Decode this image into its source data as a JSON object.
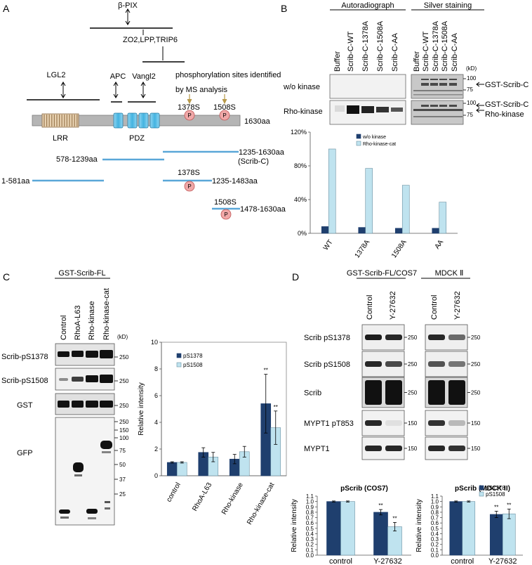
{
  "panel_labels": [
    "A",
    "B",
    "C",
    "D"
  ],
  "panel_a": {
    "top_partner": "β-PIX",
    "middle_partners": "ZO2,LPP,TRIP6",
    "lgl2": "LGL2",
    "apc": "APC",
    "vangl2": "Vangl2",
    "phospho_note_1": "phosphorylation sites identified",
    "phospho_note_2": "by MS analysis",
    "site_1": "1378S",
    "site_2": "1508S",
    "p_label": "P",
    "length": "1630aa",
    "domain_lrr": "LRR",
    "domain_pdz": "PDZ",
    "fragments": [
      {
        "label": "1235-1630aa",
        "sub": "(Scrib-C)"
      },
      {
        "label": "578-1239aa"
      },
      {
        "label": "1-581aa"
      },
      {
        "label": "1235-1483aa",
        "site": "1378S"
      },
      {
        "label": "1478-1630aa",
        "site": "1508S"
      }
    ]
  },
  "panel_b": {
    "header_left": "Autoradiograph",
    "header_right": "Silver staining",
    "lanes": [
      "Buffer",
      "Scrib-C-WT",
      "Scrib-C-1378A",
      "Scrib-C-1508A",
      "Scrib-C-AA"
    ],
    "kd": "(kD)",
    "rows": [
      {
        "label": "w/o kinase",
        "markers": [
          "100",
          "75"
        ],
        "bands": [
          "GST-Scrib-C"
        ]
      },
      {
        "label": "Rho-kinase",
        "markers": [
          "100",
          "75"
        ],
        "bands": [
          "GST-Scrib-C",
          "Rho-kinase"
        ]
      }
    ]
  },
  "panel_c": {
    "construct": "GST-Scrib-FL",
    "lanes": [
      "Control",
      "RhoA-L63",
      "Rho-kinase",
      "Rho-kinase-cat"
    ],
    "kd": "(kD)",
    "blots": [
      {
        "label": "Scrib-pS1378",
        "marker": "250"
      },
      {
        "label": "Scrib-pS1508",
        "marker": "250"
      },
      {
        "label": "GST",
        "marker": "250"
      },
      {
        "label": "GFP",
        "markers": [
          "250",
          "150",
          "100",
          "75",
          "50",
          "37",
          "25"
        ]
      }
    ],
    "sig_mark": "**"
  },
  "panel_d": {
    "group_left": "GST-Scrib-FL/COS7",
    "group_right": "MDCK Ⅱ",
    "lanes": [
      "Control",
      "Y-27632"
    ],
    "blots": [
      {
        "label": "Scrib pS1378",
        "marker": "250"
      },
      {
        "label": "Scrib pS1508",
        "marker": "250"
      },
      {
        "label": "Scrib",
        "marker": "250"
      },
      {
        "label": "MYPT1 pT853",
        "marker": "150"
      },
      {
        "label": "MYPT1",
        "marker": "150"
      }
    ],
    "sig_mark": "**"
  },
  "colors": {
    "dark_series": "#1f3f6e",
    "light_series": "#bfe3ef",
    "domain_blue": "#5dc2e8",
    "line_blue": "#5aa7d8",
    "p_pink": "#f0a8a8"
  },
  "chart_data": [
    {
      "type": "bar",
      "panel": "B",
      "categories": [
        "WT",
        "1378A",
        "1508A",
        "AA"
      ],
      "series": [
        {
          "name": "w/o kinase",
          "values": [
            8,
            7,
            6,
            6
          ]
        },
        {
          "name": "Rho-kinase-cat",
          "values": [
            100,
            77,
            57,
            37
          ]
        }
      ],
      "yticks": [
        "0%",
        "40%",
        "80%",
        "120%"
      ],
      "ylim": [
        0,
        120
      ],
      "legend": "top-left"
    },
    {
      "type": "bar",
      "panel": "C",
      "categories": [
        "control",
        "RhoA-L63",
        "Rho-kinase",
        "Rho-kinase-cat"
      ],
      "series": [
        {
          "name": "pS1378",
          "values": [
            1.0,
            1.75,
            1.25,
            5.4
          ],
          "errors": [
            0.05,
            0.35,
            0.35,
            2.2
          ]
        },
        {
          "name": "pS1508",
          "values": [
            1.0,
            1.4,
            1.8,
            3.6
          ],
          "errors": [
            0.05,
            0.35,
            0.4,
            1.25
          ]
        }
      ],
      "ylabel": "Relative intensity",
      "yticks": [
        "0",
        "2",
        "4",
        "6",
        "8",
        "10"
      ],
      "ylim": [
        0,
        10
      ],
      "significant": [
        [
          3,
          0
        ],
        [
          3,
          1
        ]
      ],
      "legend": "top-left"
    },
    {
      "type": "bar",
      "panel": "D",
      "title": "pScrib (COS7)",
      "categories": [
        "control",
        "Y-27632"
      ],
      "series": [
        {
          "name": "pS1378",
          "values": [
            1.0,
            0.8
          ],
          "errors": [
            0.01,
            0.05
          ]
        },
        {
          "name": "pS1508",
          "values": [
            1.0,
            0.53
          ],
          "errors": [
            0.01,
            0.08
          ]
        }
      ],
      "ylabel": "Relative intensity",
      "yticks": [
        "0.0",
        "0.1",
        "0.2",
        "0.3",
        "0.4",
        "0.5",
        "0.6",
        "0.7",
        "0.8",
        "0.9",
        "1.0",
        "1.1"
      ],
      "ylim": [
        0,
        1.1
      ],
      "significant": [
        [
          1,
          0
        ],
        [
          1,
          1
        ]
      ]
    },
    {
      "type": "bar",
      "panel": "D",
      "title": "pScrib (MDCK II)",
      "categories": [
        "control",
        "Y-27632"
      ],
      "series": [
        {
          "name": "pS1378",
          "values": [
            1.0,
            0.76
          ],
          "errors": [
            0.01,
            0.06
          ]
        },
        {
          "name": "pS1508",
          "values": [
            1.0,
            0.77
          ],
          "errors": [
            0.01,
            0.09
          ]
        }
      ],
      "ylabel": "Relative intensity",
      "yticks": [
        "0.0",
        "0.1",
        "0.2",
        "0.3",
        "0.4",
        "0.5",
        "0.6",
        "0.7",
        "0.8",
        "0.9",
        "1.0",
        "1.1"
      ],
      "ylim": [
        0,
        1.1
      ],
      "significant": [
        [
          1,
          0
        ],
        [
          1,
          1
        ]
      ],
      "legend": "top-right"
    }
  ]
}
